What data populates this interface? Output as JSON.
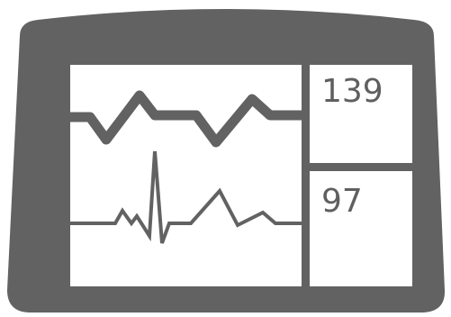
{
  "monitor": {
    "frame_color": "#626262",
    "screen_color": "#ffffff",
    "trace_color": "#626262",
    "readouts": {
      "top_value": "139",
      "bottom_value": "97"
    },
    "traces": {
      "top_icon": "pressure-wave-icon",
      "bottom_icon": "ecg-wave-icon"
    }
  }
}
